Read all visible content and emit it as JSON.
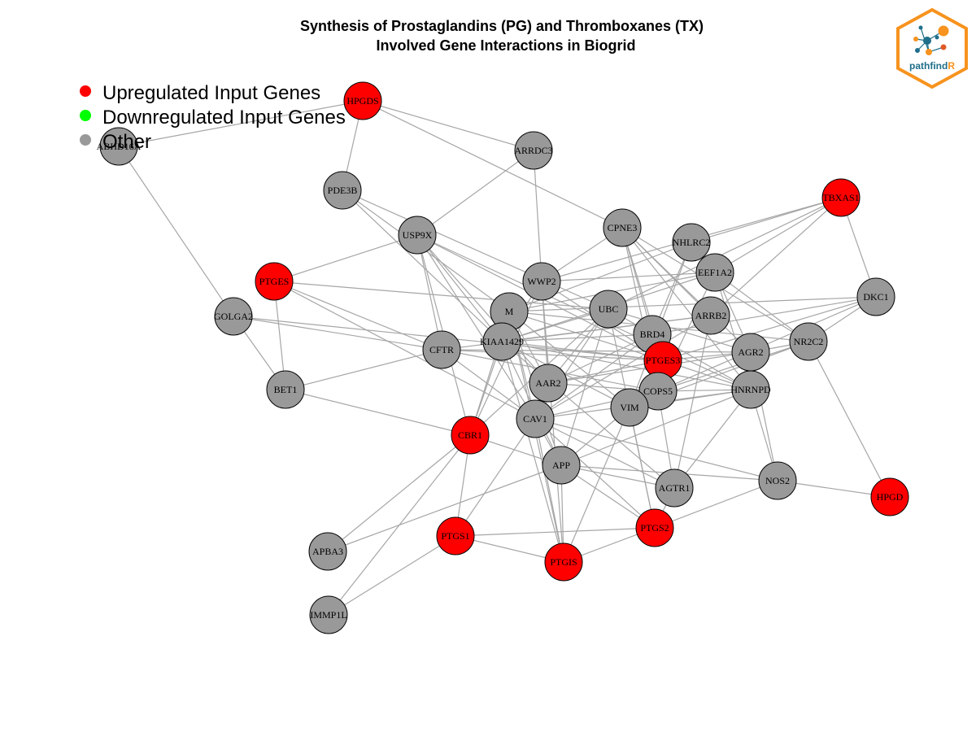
{
  "title_line1": "Synthesis of Prostaglandins (PG) and Thromboxanes (TX)",
  "title_line2": "Involved Gene Interactions in Biogrid",
  "legend": [
    {
      "label": "Upregulated Input Genes",
      "color": "#ff0000"
    },
    {
      "label": "Downregulated Input Genes",
      "color": "#00ff00"
    },
    {
      "label": "Other",
      "color": "#999999"
    }
  ],
  "logo": {
    "text_main": "pathfind",
    "text_accent": "R",
    "border_color": "#f7931e",
    "text_color": "#1f6f8b",
    "accent_color": "#f7931e"
  },
  "colors": {
    "up": "#ff0000",
    "down": "#00ff00",
    "other": "#999999",
    "edge": "#a6a6a6",
    "node_border": "#000000"
  },
  "nodes": [
    {
      "id": "HPGDS",
      "status": "up"
    },
    {
      "id": "ABHD16A",
      "status": "other"
    },
    {
      "id": "ARRDC3",
      "status": "other"
    },
    {
      "id": "PDE3B",
      "status": "other"
    },
    {
      "id": "USP9X",
      "status": "other"
    },
    {
      "id": "CPNE3",
      "status": "other"
    },
    {
      "id": "TBXAS1",
      "status": "up"
    },
    {
      "id": "NHLRC2",
      "status": "other"
    },
    {
      "id": "EEF1A2",
      "status": "other"
    },
    {
      "id": "PTGES",
      "status": "up"
    },
    {
      "id": "WWP2",
      "status": "other"
    },
    {
      "id": "DKC1",
      "status": "other"
    },
    {
      "id": "GOLGA2",
      "status": "other"
    },
    {
      "id": "M",
      "status": "other"
    },
    {
      "id": "UBC",
      "status": "other"
    },
    {
      "id": "ARRB2",
      "status": "other"
    },
    {
      "id": "BRD4",
      "status": "other"
    },
    {
      "id": "KIAA1429",
      "status": "other"
    },
    {
      "id": "CFTR",
      "status": "other"
    },
    {
      "id": "PTGES3",
      "status": "up"
    },
    {
      "id": "AGR2",
      "status": "other"
    },
    {
      "id": "NR2C2",
      "status": "other"
    },
    {
      "id": "BET1",
      "status": "other"
    },
    {
      "id": "AAR2",
      "status": "other"
    },
    {
      "id": "COPS5",
      "status": "other"
    },
    {
      "id": "HNRNPD",
      "status": "other"
    },
    {
      "id": "CAV1",
      "status": "other"
    },
    {
      "id": "VIM",
      "status": "other"
    },
    {
      "id": "CBR1",
      "status": "up"
    },
    {
      "id": "APP",
      "status": "other"
    },
    {
      "id": "AGTR1",
      "status": "other"
    },
    {
      "id": "NOS2",
      "status": "other"
    },
    {
      "id": "HPGD",
      "status": "up"
    },
    {
      "id": "PTGS2",
      "status": "up"
    },
    {
      "id": "APBA3",
      "status": "other"
    },
    {
      "id": "PTGS1",
      "status": "up"
    },
    {
      "id": "PTGIS",
      "status": "up"
    },
    {
      "id": "IMMP1L",
      "status": "other"
    }
  ],
  "edges": [
    [
      "HPGDS",
      "ABHD16A"
    ],
    [
      "HPGDS",
      "ARRDC3"
    ],
    [
      "HPGDS",
      "PDE3B"
    ],
    [
      "HPGDS",
      "CPNE3"
    ],
    [
      "ABHD16A",
      "GOLGA2"
    ],
    [
      "ARRDC3",
      "USP9X"
    ],
    [
      "ARRDC3",
      "WWP2"
    ],
    [
      "PDE3B",
      "KIAA1429"
    ],
    [
      "PDE3B",
      "M"
    ],
    [
      "PDE3B",
      "UBC"
    ],
    [
      "USP9X",
      "PTGES"
    ],
    [
      "USP9X",
      "CFTR"
    ],
    [
      "USP9X",
      "CBR1"
    ],
    [
      "USP9X",
      "AAR2"
    ],
    [
      "USP9X",
      "CAV1"
    ],
    [
      "USP9X",
      "PTGES3"
    ],
    [
      "USP9X",
      "HNRNPD"
    ],
    [
      "USP9X",
      "KIAA1429"
    ],
    [
      "CPNE3",
      "WWP2"
    ],
    [
      "CPNE3",
      "BRD4"
    ],
    [
      "CPNE3",
      "PTGES3"
    ],
    [
      "CPNE3",
      "AGR2"
    ],
    [
      "CPNE3",
      "COPS5"
    ],
    [
      "CPNE3",
      "NR2C2"
    ],
    [
      "CPNE3",
      "HNRNPD"
    ],
    [
      "CPNE3",
      "ARRB2"
    ],
    [
      "TBXAS1",
      "EEF1A2"
    ],
    [
      "TBXAS1",
      "DKC1"
    ],
    [
      "TBXAS1",
      "NHLRC2"
    ],
    [
      "TBXAS1",
      "UBC"
    ],
    [
      "TBXAS1",
      "ARRB2"
    ],
    [
      "TBXAS1",
      "WWP2"
    ],
    [
      "NHLRC2",
      "BRD4"
    ],
    [
      "NHLRC2",
      "M"
    ],
    [
      "NHLRC2",
      "VIM"
    ],
    [
      "EEF1A2",
      "M"
    ],
    [
      "EEF1A2",
      "AGR2"
    ],
    [
      "EEF1A2",
      "KIAA1429"
    ],
    [
      "EEF1A2",
      "NR2C2"
    ],
    [
      "EEF1A2",
      "COPS5"
    ],
    [
      "EEF1A2",
      "HNRNPD"
    ],
    [
      "EEF1A2",
      "WWP2"
    ],
    [
      "PTGES",
      "BET1"
    ],
    [
      "PTGES",
      "UBC"
    ],
    [
      "PTGES",
      "CAV1"
    ],
    [
      "PTGES",
      "CFTR"
    ],
    [
      "WWP2",
      "CBR1"
    ],
    [
      "WWP2",
      "AAR2"
    ],
    [
      "WWP2",
      "PTGES3"
    ],
    [
      "WWP2",
      "PTGIS"
    ],
    [
      "WWP2",
      "KIAA1429"
    ],
    [
      "DKC1",
      "PTGES3"
    ],
    [
      "DKC1",
      "NR2C2"
    ],
    [
      "DKC1",
      "COPS5"
    ],
    [
      "DKC1",
      "BRD4"
    ],
    [
      "DKC1",
      "M"
    ],
    [
      "GOLGA2",
      "BET1"
    ],
    [
      "GOLGA2",
      "CFTR"
    ],
    [
      "GOLGA2",
      "PTGES3"
    ],
    [
      "M",
      "CAV1"
    ],
    [
      "M",
      "VIM"
    ],
    [
      "M",
      "APP"
    ],
    [
      "M",
      "NR2C2"
    ],
    [
      "M",
      "AAR2"
    ],
    [
      "M",
      "CBR1"
    ],
    [
      "M",
      "PTGIS"
    ],
    [
      "M",
      "PTGES3"
    ],
    [
      "UBC",
      "CAV1"
    ],
    [
      "UBC",
      "AGR2"
    ],
    [
      "UBC",
      "HNRNPD"
    ],
    [
      "UBC",
      "AAR2"
    ],
    [
      "UBC",
      "KIAA1429"
    ],
    [
      "UBC",
      "CBR1"
    ],
    [
      "UBC",
      "APP"
    ],
    [
      "UBC",
      "PTGS2"
    ],
    [
      "ARRB2",
      "AGTR1"
    ],
    [
      "ARRB2",
      "KIAA1429"
    ],
    [
      "ARRB2",
      "CFTR"
    ],
    [
      "ARRB2",
      "CAV1"
    ],
    [
      "BRD4",
      "CAV1"
    ],
    [
      "BRD4",
      "AAR2"
    ],
    [
      "BRD4",
      "KIAA1429"
    ],
    [
      "KIAA1429",
      "HNRNPD"
    ],
    [
      "KIAA1429",
      "PTGES3"
    ],
    [
      "KIAA1429",
      "CBR1"
    ],
    [
      "KIAA1429",
      "APP"
    ],
    [
      "KIAA1429",
      "AGTR1"
    ],
    [
      "KIAA1429",
      "PTGIS"
    ],
    [
      "KIAA1429",
      "VIM"
    ],
    [
      "CFTR",
      "CAV1"
    ],
    [
      "CFTR",
      "PTGES3"
    ],
    [
      "CFTR",
      "COPS5"
    ],
    [
      "CFTR",
      "AGR2"
    ],
    [
      "CFTR",
      "BET1"
    ],
    [
      "PTGES3",
      "AGR2"
    ],
    [
      "PTGES3",
      "AAR2"
    ],
    [
      "PTGES3",
      "HNRNPD"
    ],
    [
      "PTGES3",
      "VIM"
    ],
    [
      "AGR2",
      "NR2C2"
    ],
    [
      "AGR2",
      "AAR2"
    ],
    [
      "AGR2",
      "HNRNPD"
    ],
    [
      "AGR2",
      "NOS2"
    ],
    [
      "NR2C2",
      "HPGD"
    ],
    [
      "NR2C2",
      "COPS5"
    ],
    [
      "NR2C2",
      "VIM"
    ],
    [
      "BET1",
      "CBR1"
    ],
    [
      "AAR2",
      "COPS5"
    ],
    [
      "AAR2",
      "CAV1"
    ],
    [
      "COPS5",
      "HNRNPD"
    ],
    [
      "COPS5",
      "CAV1"
    ],
    [
      "COPS5",
      "AGTR1"
    ],
    [
      "HNRNPD",
      "NOS2"
    ],
    [
      "HNRNPD",
      "APP"
    ],
    [
      "HNRNPD",
      "CAV1"
    ],
    [
      "HNRNPD",
      "VIM"
    ],
    [
      "CAV1",
      "APP"
    ],
    [
      "CAV1",
      "NOS2"
    ],
    [
      "CAV1",
      "AGTR1"
    ],
    [
      "CAV1",
      "PTGS2"
    ],
    [
      "CAV1",
      "PTGS1"
    ],
    [
      "CAV1",
      "PTGIS"
    ],
    [
      "VIM",
      "APP"
    ],
    [
      "VIM",
      "PTGIS"
    ],
    [
      "VIM",
      "PTGS2"
    ],
    [
      "CBR1",
      "APBA3"
    ],
    [
      "CBR1",
      "IMMP1L"
    ],
    [
      "CBR1",
      "PTGS1"
    ],
    [
      "CBR1",
      "APP"
    ],
    [
      "APP",
      "APBA3"
    ],
    [
      "APP",
      "AGTR1"
    ],
    [
      "APP",
      "NOS2"
    ],
    [
      "APP",
      "PTGS2"
    ],
    [
      "APP",
      "PTGIS"
    ],
    [
      "AGTR1",
      "HNRNPD"
    ],
    [
      "AGTR1",
      "PTGS2"
    ],
    [
      "NOS2",
      "HPGD"
    ],
    [
      "NOS2",
      "PTGS2"
    ],
    [
      "PTGS1",
      "PTGIS"
    ],
    [
      "PTGS1",
      "PTGS2"
    ],
    [
      "PTGS1",
      "IMMP1L"
    ],
    [
      "PTGIS",
      "PTGS2"
    ]
  ]
}
